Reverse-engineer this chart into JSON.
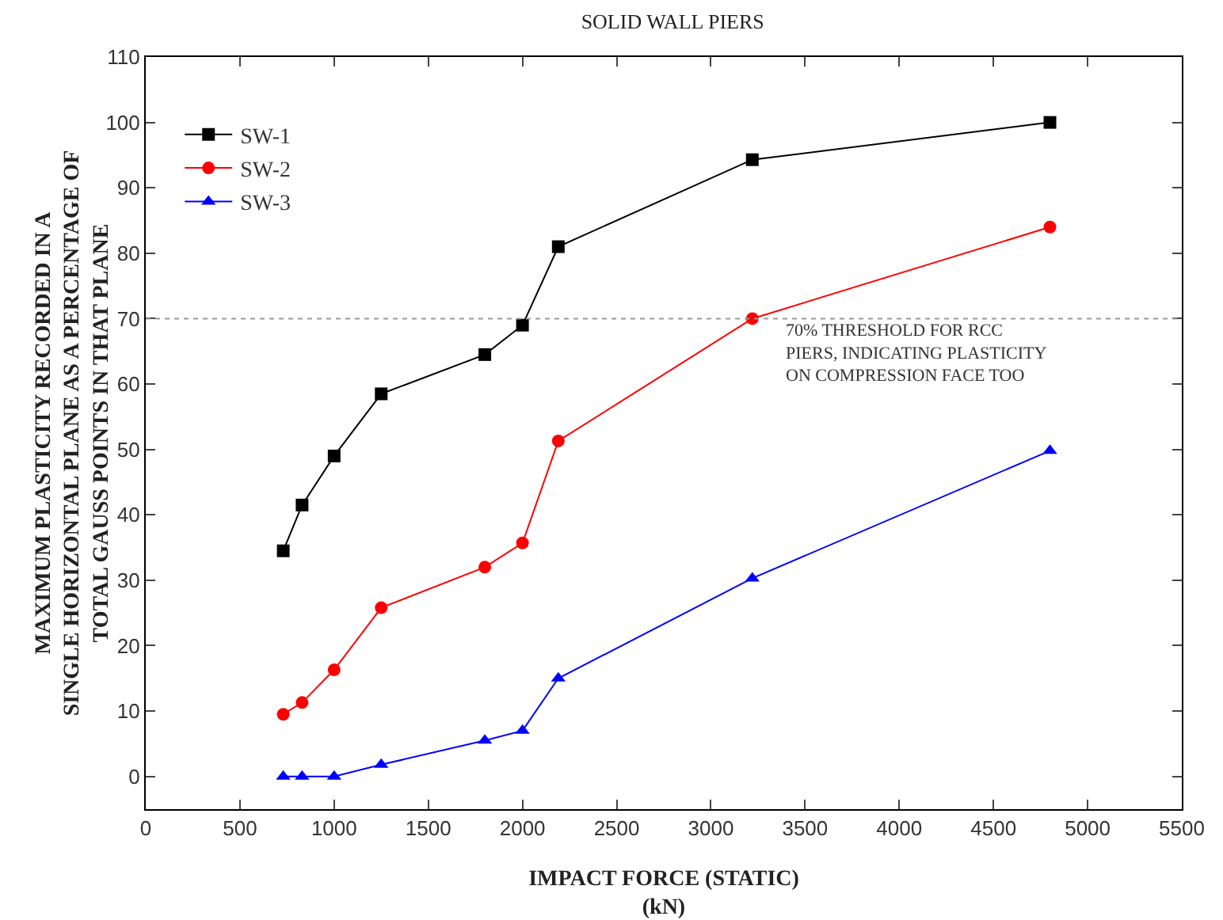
{
  "chart_data": {
    "type": "line",
    "title": "SOLID WALL PIERS",
    "xlabel": "IMPACT FORCE (STATIC)\n(kN)",
    "ylabel": "MAXIMUM PLASTICITY RECORDED IN A\nSINGLE HORIZONTAL PLANE AS A PERCENTAGE OF\nTOTAL GAUSS POINTS IN THAT PLANE",
    "x": [
      730,
      830,
      1000,
      1250,
      1800,
      2000,
      2190,
      3220,
      4800
    ],
    "series": [
      {
        "name": "SW-1",
        "color": "#000000",
        "marker": "square",
        "values": [
          34.5,
          41.5,
          49,
          58.5,
          64.5,
          69,
          81,
          94.3,
          100
        ]
      },
      {
        "name": "SW-2",
        "color": "#ff0000",
        "marker": "circle",
        "values": [
          9.5,
          11.3,
          16.3,
          25.8,
          32,
          35.7,
          51.3,
          70,
          84
        ]
      },
      {
        "name": "SW-3",
        "color": "#0000ff",
        "marker": "triangle",
        "values": [
          0,
          0,
          0,
          1.8,
          5.5,
          7,
          15,
          30.3,
          49.8
        ]
      }
    ],
    "xlim": [
      0,
      5500
    ],
    "xticks": [
      0,
      500,
      1000,
      1500,
      2000,
      2500,
      3000,
      3500,
      4000,
      4500,
      5000,
      5500
    ],
    "ylim": [
      -5,
      110
    ],
    "yticks": [
      0,
      10,
      20,
      30,
      40,
      50,
      60,
      70,
      80,
      90,
      100,
      110
    ],
    "ref_lines": [
      {
        "axis": "y",
        "value": 70,
        "label": "70% THRESHOLD FOR RCC\nPIERS, INDICATING PLASTICITY\nON COMPRESSION FACE TOO",
        "color": "#999999",
        "line_style": "dotted"
      }
    ],
    "grid": false,
    "legend": "top left"
  }
}
